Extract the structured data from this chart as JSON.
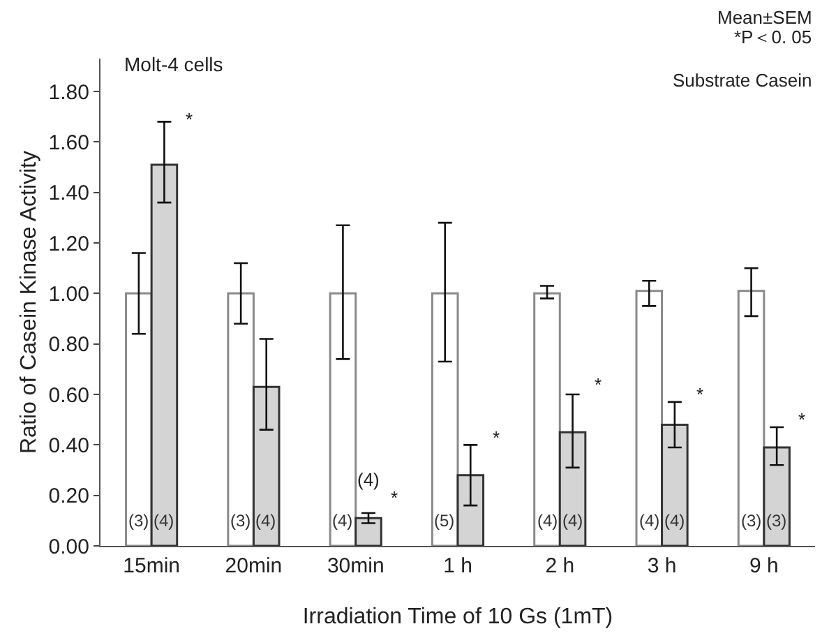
{
  "chart_data": {
    "type": "bar",
    "xlabel": "Irradiation Time of 10 Gs (1mT)",
    "ylabel": "Ratio of Casein Kinase Activity",
    "categories": [
      "15min",
      "20min",
      "30min",
      "1 h",
      "2 h",
      "3 h",
      "9 h"
    ],
    "series": [
      {
        "color": "#ffffff",
        "values": [
          1.0,
          1.0,
          1.0,
          1.0,
          1.0,
          1.01,
          1.01
        ],
        "errors": [
          [
            0.84,
            1.16
          ],
          [
            0.88,
            1.12
          ],
          [
            0.74,
            1.27
          ],
          [
            0.73,
            1.28
          ],
          [
            0.98,
            1.03
          ],
          [
            0.95,
            1.05
          ],
          [
            0.91,
            1.1
          ]
        ]
      },
      {
        "color": "#d4d4d4",
        "values": [
          1.51,
          0.63,
          0.11,
          0.28,
          0.45,
          0.48,
          0.39
        ],
        "errors": [
          [
            1.36,
            1.68
          ],
          [
            0.46,
            0.82
          ],
          [
            0.09,
            0.13
          ],
          [
            0.16,
            0.4
          ],
          [
            0.31,
            0.6
          ],
          [
            0.39,
            0.57
          ],
          [
            0.32,
            0.47
          ]
        ]
      }
    ],
    "ylim": [
      0,
      1.93
    ],
    "yticks": [
      {
        "value": 0,
        "label": "0.00"
      },
      {
        "value": 0.2,
        "label": "0.20"
      },
      {
        "value": 0.4,
        "label": "0.40"
      },
      {
        "value": 0.6,
        "label": "0.60"
      },
      {
        "value": 0.8,
        "label": "0.80"
      },
      {
        "value": 1.0,
        "label": "1.00"
      },
      {
        "value": 1.2,
        "label": "1.20"
      },
      {
        "value": 1.4,
        "label": "1.40"
      },
      {
        "value": 1.6,
        "label": "1.60"
      },
      {
        "value": 1.8,
        "label": "1.80"
      }
    ],
    "grid": false,
    "annotations": [
      "Molt-4 cells",
      "Mean±SEM",
      "*P＜0. 05",
      "Substrate Casein",
      {
        "text": "(3)",
        "x": "15min",
        "y": 0.1
      },
      {
        "text": "(4)",
        "x": "15min",
        "y": 0.1
      },
      {
        "text": "*",
        "x": "15min",
        "y": 1.69
      },
      {
        "text": "(3)",
        "x": "20min",
        "y": 0.1
      },
      {
        "text": "(4)",
        "x": "20min",
        "y": 0.1
      },
      {
        "text": "(4)",
        "x": "30min",
        "y": 0.1
      },
      {
        "text": "(4)",
        "x": "30min",
        "y": 0.26
      },
      {
        "text": "*",
        "x": "30min",
        "y": 0.19
      },
      {
        "text": "(5)",
        "x": "1 h",
        "y": 0.1
      },
      {
        "text": "*",
        "x": "1 h",
        "y": 0.43
      },
      {
        "text": "(4)",
        "x": "2 h",
        "y": 0.1
      },
      {
        "text": "(4)",
        "x": "2 h",
        "y": 0.1
      },
      {
        "text": "*",
        "x": "2 h",
        "y": 0.64
      },
      {
        "text": "(4)",
        "x": "3 h",
        "y": 0.1
      },
      {
        "text": "(4)",
        "x": "3 h",
        "y": 0.1
      },
      {
        "text": "*",
        "x": "3 h",
        "y": 0.6
      },
      {
        "text": "(3)",
        "x": "9 h",
        "y": 0.1
      },
      {
        "text": "(3)",
        "x": "9 h",
        "y": 0.1
      },
      {
        "text": "*",
        "x": "9 h",
        "y": 0.5
      }
    ]
  }
}
